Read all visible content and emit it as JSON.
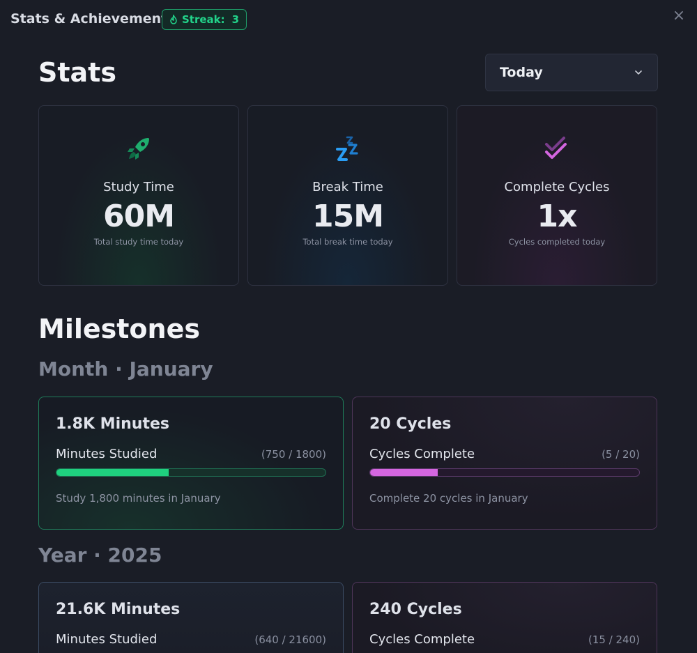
{
  "header": {
    "title": "Stats & Achievements",
    "streak_label": "Streak:",
    "streak_value": "3",
    "close_label": "×"
  },
  "stats": {
    "title": "Stats",
    "period": "Today",
    "cards": [
      {
        "label": "Study Time",
        "value": "60M",
        "sub": "Total study time today",
        "icon": "rocket-icon"
      },
      {
        "label": "Break Time",
        "value": "15M",
        "sub": "Total break time today",
        "icon": "zzz-icon"
      },
      {
        "label": "Complete Cycles",
        "value": "1x",
        "sub": "Cycles completed today",
        "icon": "double-check-icon"
      }
    ]
  },
  "milestones": {
    "title": "Milestones",
    "month": {
      "title": "Month · January",
      "cards": [
        {
          "title": "1.8K Minutes",
          "label": "Minutes Studied",
          "count": "(750 / 1800)",
          "progress": 0.4167,
          "desc": "Study 1,800 minutes in January"
        },
        {
          "title": "20 Cycles",
          "label": "Cycles Complete",
          "count": "(5 / 20)",
          "progress": 0.25,
          "desc": "Complete 20 cycles in January"
        }
      ]
    },
    "year": {
      "title": "Year · 2025",
      "cards": [
        {
          "title": "21.6K Minutes",
          "label": "Minutes Studied",
          "count": "(640 / 21600)"
        },
        {
          "title": "240 Cycles",
          "label": "Cycles Complete",
          "count": "(15 / 240)"
        }
      ]
    }
  },
  "colors": {
    "accent_green": "#1fd17f",
    "accent_purple": "#d466e0",
    "accent_blue": "#2a9df4"
  }
}
